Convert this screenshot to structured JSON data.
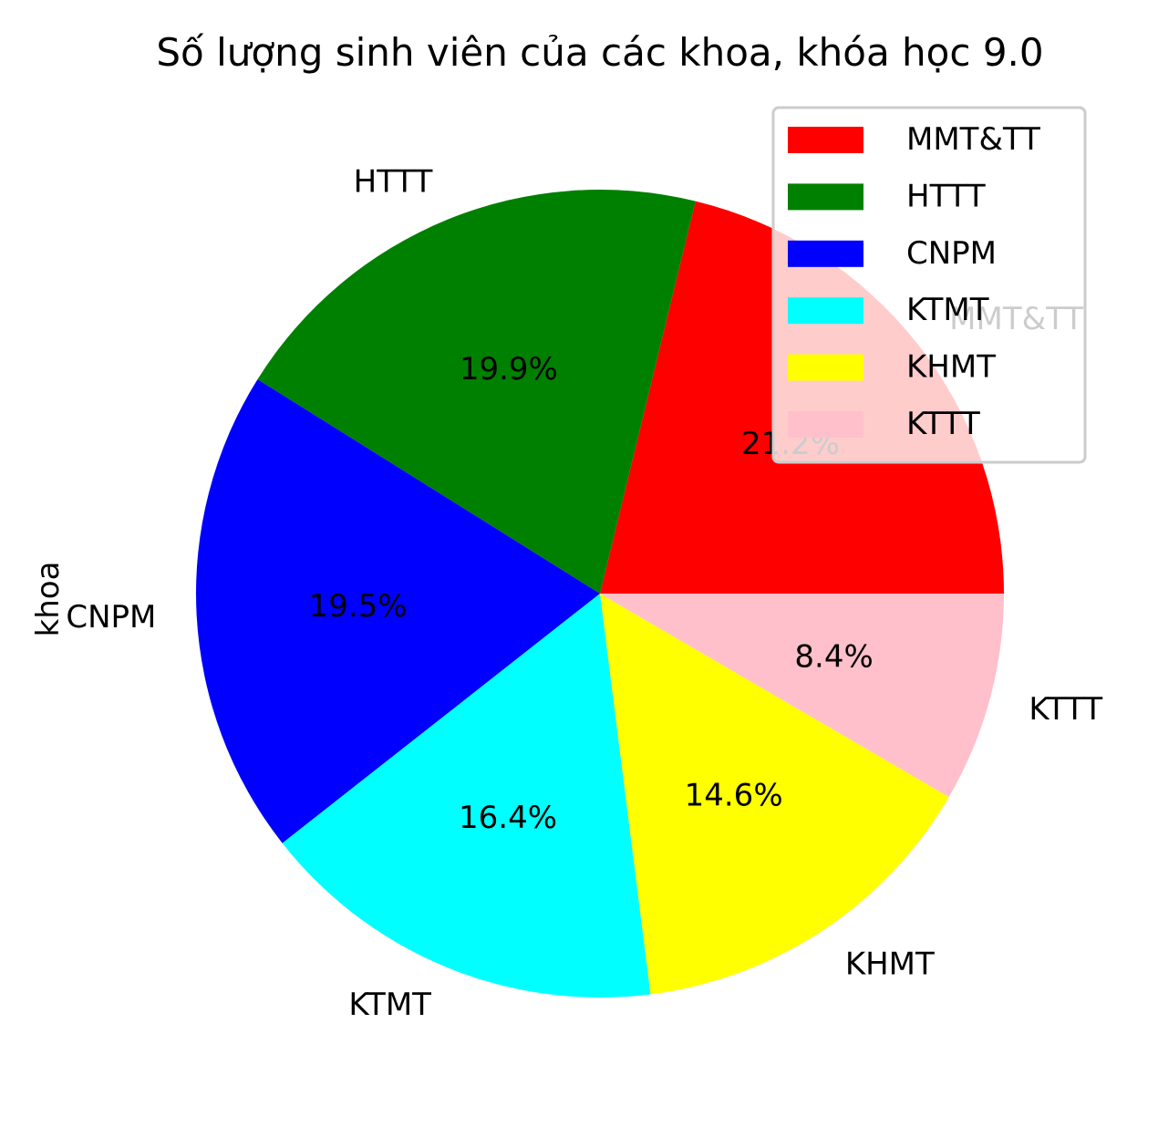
{
  "chart_data": {
    "type": "pie",
    "title": "Số lượng sinh viên của các khoa, khóa học 9.0",
    "ylabel": "khoa",
    "categories": [
      "MMT&TT",
      "HTTT",
      "CNPM",
      "KTMT",
      "KHMT",
      "KTTT"
    ],
    "values": [
      21.2,
      19.9,
      19.5,
      16.4,
      14.6,
      8.4
    ],
    "percent_labels": [
      "21.2%",
      "19.9%",
      "19.5%",
      "16.4%",
      "14.6%",
      "8.4%"
    ],
    "colors": [
      "#ff0000",
      "#008000",
      "#0000ff",
      "#00ffff",
      "#ffff00",
      "#ffc0cb"
    ],
    "start_angle_deg": 0,
    "direction": "counterclockwise",
    "legend": {
      "placement": "upper right",
      "entries": [
        "MMT&TT",
        "HTTT",
        "CNPM",
        "KTMT",
        "KHMT",
        "KTTT"
      ]
    }
  }
}
